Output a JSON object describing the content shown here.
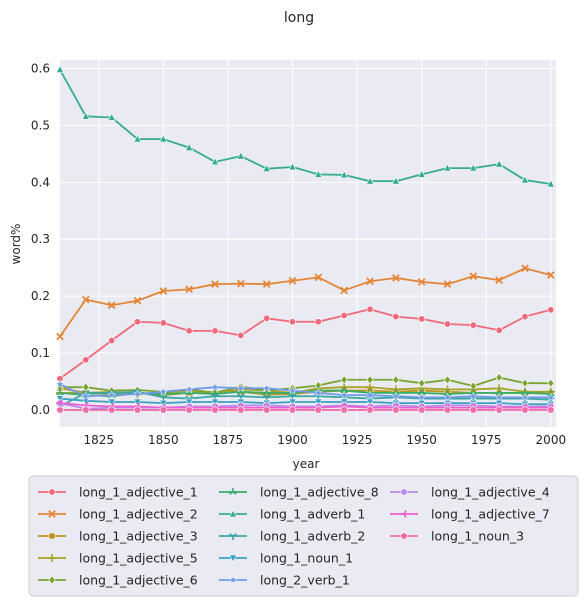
{
  "chart_data": {
    "type": "line",
    "title": "long",
    "xlabel": "year",
    "ylabel": "word%",
    "xlim": [
      1810,
      2002
    ],
    "ylim": [
      -0.03,
      0.615
    ],
    "xticks": [
      1825,
      1850,
      1875,
      1900,
      1925,
      1950,
      1975,
      2000
    ],
    "yticks": [
      0.0,
      0.1,
      0.2,
      0.3,
      0.4,
      0.5,
      0.6
    ],
    "grid": true,
    "legend_position": "below",
    "x": [
      1810,
      1820,
      1830,
      1840,
      1850,
      1860,
      1870,
      1880,
      1890,
      1900,
      1910,
      1920,
      1930,
      1940,
      1950,
      1960,
      1970,
      1980,
      1990,
      2000
    ],
    "series": [
      {
        "name": "long_1_adjective_1",
        "color": "#f0697b",
        "marker": "circle",
        "values": [
          0.055,
          0.088,
          0.122,
          0.155,
          0.153,
          0.139,
          0.139,
          0.131,
          0.161,
          0.155,
          0.155,
          0.166,
          0.177,
          0.164,
          0.16,
          0.151,
          0.149,
          0.14,
          0.164,
          0.176
        ]
      },
      {
        "name": "long_1_adjective_2",
        "color": "#e48638",
        "marker": "x",
        "values": [
          0.129,
          0.194,
          0.184,
          0.192,
          0.209,
          0.212,
          0.221,
          0.222,
          0.221,
          0.227,
          0.233,
          0.21,
          0.226,
          0.232,
          0.225,
          0.221,
          0.235,
          0.228,
          0.249,
          0.237
        ]
      },
      {
        "name": "long_1_adjective_3",
        "color": "#bb9520",
        "marker": "square",
        "values": [
          0.038,
          0.03,
          0.028,
          0.03,
          0.026,
          0.03,
          0.032,
          0.032,
          0.027,
          0.028,
          0.032,
          0.034,
          0.034,
          0.032,
          0.034,
          0.032,
          0.03,
          0.03,
          0.03,
          0.03
        ]
      },
      {
        "name": "long_1_adjective_5",
        "color": "#a8a427",
        "marker": "plus",
        "values": [
          0.03,
          0.03,
          0.032,
          0.028,
          0.03,
          0.034,
          0.03,
          0.036,
          0.034,
          0.03,
          0.038,
          0.04,
          0.04,
          0.036,
          0.038,
          0.036,
          0.036,
          0.038,
          0.032,
          0.032
        ]
      },
      {
        "name": "long_1_adjective_6",
        "color": "#7ca330",
        "marker": "diamond",
        "values": [
          0.04,
          0.04,
          0.034,
          0.035,
          0.032,
          0.036,
          0.03,
          0.041,
          0.034,
          0.038,
          0.043,
          0.053,
          0.053,
          0.053,
          0.047,
          0.053,
          0.042,
          0.057,
          0.047,
          0.047
        ]
      },
      {
        "name": "long_1_adjective_8",
        "color": "#36ad6b",
        "marker": "tri",
        "values": [
          0.03,
          0.026,
          0.024,
          0.03,
          0.028,
          0.03,
          0.028,
          0.032,
          0.03,
          0.03,
          0.034,
          0.034,
          0.03,
          0.03,
          0.03,
          0.028,
          0.03,
          0.03,
          0.03,
          0.028
        ]
      },
      {
        "name": "long_1_adverb_1",
        "color": "#36ab94",
        "marker": "triangle",
        "values": [
          0.598,
          0.516,
          0.514,
          0.476,
          0.476,
          0.461,
          0.436,
          0.446,
          0.424,
          0.427,
          0.414,
          0.413,
          0.402,
          0.402,
          0.414,
          0.425,
          0.425,
          0.432,
          0.404,
          0.397
        ]
      },
      {
        "name": "long_1_adverb_2",
        "color": "#38a7a6",
        "marker": "tri_down",
        "values": [
          0.006,
          0.03,
          0.03,
          0.032,
          0.022,
          0.02,
          0.024,
          0.024,
          0.022,
          0.024,
          0.024,
          0.022,
          0.02,
          0.022,
          0.02,
          0.02,
          0.02,
          0.02,
          0.02,
          0.018
        ]
      },
      {
        "name": "long_1_noun_1",
        "color": "#3aa0c4",
        "marker": "triangle_down",
        "values": [
          0.02,
          0.016,
          0.014,
          0.014,
          0.012,
          0.014,
          0.014,
          0.014,
          0.012,
          0.014,
          0.014,
          0.014,
          0.014,
          0.012,
          0.012,
          0.012,
          0.012,
          0.012,
          0.01,
          0.01
        ]
      },
      {
        "name": "long_2_verb_1",
        "color": "#6f9ae8",
        "marker": "star",
        "values": [
          0.045,
          0.024,
          0.026,
          0.028,
          0.032,
          0.036,
          0.04,
          0.038,
          0.038,
          0.034,
          0.03,
          0.026,
          0.026,
          0.024,
          0.022,
          0.022,
          0.024,
          0.022,
          0.022,
          0.022
        ]
      },
      {
        "name": "long_1_adjective_4",
        "color": "#b88bea",
        "marker": "hexagon",
        "values": [
          0.012,
          0.002,
          0.004,
          0.004,
          0.004,
          0.006,
          0.006,
          0.008,
          0.008,
          0.006,
          0.006,
          0.008,
          0.006,
          0.008,
          0.006,
          0.008,
          0.008,
          0.006,
          0.006,
          0.006
        ]
      },
      {
        "name": "long_1_adjective_7",
        "color": "#ec5fd3",
        "marker": "tri_left",
        "values": [
          0.012,
          0.008,
          0.006,
          0.006,
          0.004,
          0.004,
          0.004,
          0.004,
          0.004,
          0.004,
          0.004,
          0.006,
          0.004,
          0.004,
          0.004,
          0.004,
          0.004,
          0.004,
          0.004,
          0.004
        ]
      },
      {
        "name": "long_1_noun_3",
        "color": "#f06ca6",
        "marker": "pentagon",
        "values": [
          0.0,
          0.0,
          0.0,
          0.0,
          0.0,
          0.0,
          0.0,
          0.0,
          0.0,
          0.0,
          0.0,
          0.0,
          0.0,
          0.0,
          0.0,
          0.0,
          0.0,
          0.0,
          0.0,
          0.0
        ]
      }
    ]
  }
}
